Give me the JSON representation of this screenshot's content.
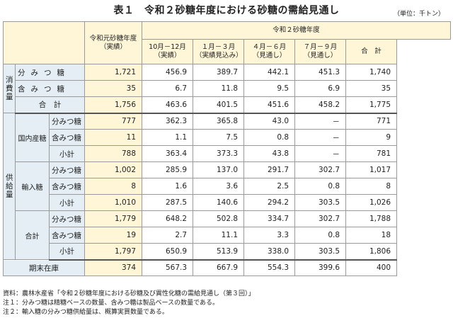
{
  "title": "表１　令和２砂糖年度における砂糖の需給見通し",
  "unit": "（単位：千トン）",
  "header": {
    "prev_year": "令和元砂糖年度\n（実績）",
    "group": "令和２砂糖年度",
    "q1": "10月－12月\n（実績）",
    "q2": "１月－３月\n（実績見込み）",
    "q3": "４月－６月\n（見通し）",
    "q4": "７月－９月\n（見通し）",
    "total": "合　計"
  },
  "labels": {
    "consumption": "消費量",
    "supply": "供給量",
    "domestic": "国内産糖",
    "imported": "輸入糖",
    "combined": "合計",
    "brown": "分みつ糖",
    "nonc": "含みつ糖",
    "subtotal": "小計",
    "brown_wide": "分みつ糖",
    "nonc_wide": "含みつ糖",
    "total_wide": "合　計",
    "stock": "期末在庫"
  },
  "rows": {
    "c_brown": [
      "1,721",
      "456.9",
      "389.7",
      "442.1",
      "451.3",
      "1,740"
    ],
    "c_nonc": [
      "35",
      "6.7",
      "11.8",
      "9.5",
      "6.9",
      "35"
    ],
    "c_total": [
      "1,756",
      "463.6",
      "401.5",
      "451.6",
      "458.2",
      "1,775"
    ],
    "d_brown": [
      "777",
      "362.3",
      "365.8",
      "43.0",
      "－",
      "771"
    ],
    "d_nonc": [
      "11",
      "1.1",
      "7.5",
      "0.8",
      "－",
      "9"
    ],
    "d_sub": [
      "788",
      "363.4",
      "373.3",
      "43.8",
      "－",
      "781"
    ],
    "i_brown": [
      "1,002",
      "285.9",
      "137.0",
      "291.7",
      "302.7",
      "1,017"
    ],
    "i_nonc": [
      "8",
      "1.6",
      "3.6",
      "2.5",
      "0.8",
      "8"
    ],
    "i_sub": [
      "1,010",
      "287.5",
      "140.6",
      "294.2",
      "303.5",
      "1,026"
    ],
    "t_brown": [
      "1,779",
      "648.2",
      "502.8",
      "334.7",
      "302.7",
      "1,788"
    ],
    "t_nonc": [
      "19",
      "2.7",
      "11.1",
      "3.3",
      "0.8",
      "18"
    ],
    "t_sub": [
      "1,797",
      "650.9",
      "513.9",
      "338.0",
      "303.5",
      "1,806"
    ],
    "stock": [
      "374",
      "567.3",
      "667.9",
      "554.3",
      "399.6",
      "400"
    ]
  },
  "notes": [
    "資料：農林水産省「令和２砂糖年度における砂糖及び異性化糖の需給見通し（第３回）」",
    "注１：分みつ糖は精糖ベースの数量、含みつ糖は製品ベースの数量である。",
    "注２：輸入糖の分みつ糖供給量は、概算実買数量である。"
  ]
}
